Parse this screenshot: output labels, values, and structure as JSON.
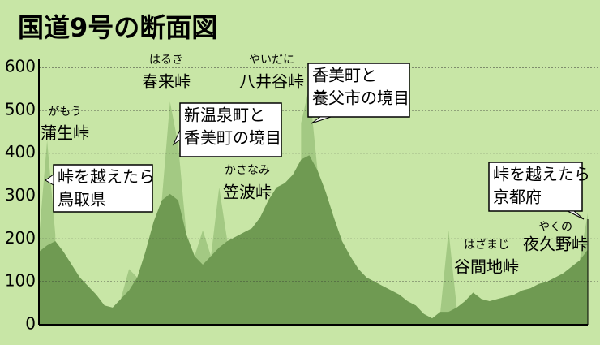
{
  "chart_data": {
    "type": "area",
    "title": "国道9号の断面図",
    "series": [
      {
        "color": "#6f9a52",
        "values": [
          170,
          185,
          195,
          170,
          140,
          110,
          90,
          70,
          45,
          40,
          60,
          80,
          110,
          170,
          240,
          290,
          305,
          290,
          210,
          160,
          140,
          160,
          180,
          195,
          205,
          215,
          225,
          250,
          290,
          320,
          330,
          350,
          385,
          395,
          360,
          310,
          250,
          195,
          160,
          130,
          110,
          100,
          90,
          80,
          70,
          55,
          45,
          25,
          15,
          30,
          30,
          40,
          55,
          75,
          60,
          55,
          60,
          65,
          70,
          80,
          85,
          95,
          100,
          110,
          120,
          135,
          150,
          175
        ]
      },
      {
        "color": "#a3c983",
        "values": [
          200,
          430,
          210,
          null,
          null,
          null,
          null,
          null,
          null,
          null,
          60,
          130,
          110,
          null,
          null,
          290,
          520,
          420,
          210,
          160,
          220,
          160,
          320,
          195,
          null,
          null,
          null,
          null,
          null,
          null,
          null,
          null,
          470,
          555,
          360,
          null,
          null,
          null,
          null,
          null,
          null,
          null,
          null,
          null,
          null,
          null,
          null,
          null,
          null,
          30,
          220,
          40,
          null,
          null,
          null,
          null,
          null,
          null,
          null,
          null,
          null,
          null,
          null,
          null,
          null,
          null,
          150,
          260
        ]
      }
    ],
    "ylim": [
      0,
      600
    ],
    "yticks": [
      0,
      100,
      200,
      300,
      400,
      500,
      600
    ],
    "grid": true,
    "passes": [
      {
        "ruby": "がもう",
        "name": "蒲生峠"
      },
      {
        "ruby": "はるき",
        "name": "春来峠"
      },
      {
        "ruby": "やいだに",
        "name": "八井谷峠"
      },
      {
        "ruby": "かさなみ",
        "name": "笠波峠"
      },
      {
        "ruby": "はざまじ",
        "name": "谷間地峠"
      },
      {
        "ruby": "やくの",
        "name": "夜久野峠"
      }
    ],
    "callouts": [
      {
        "lines": [
          "峠を越えたら",
          "鳥取県"
        ]
      },
      {
        "lines": [
          "新温泉町と",
          "香美町の境目"
        ]
      },
      {
        "lines": [
          "香美町と",
          "養父市の境目"
        ]
      },
      {
        "lines": [
          "峠を越えたら",
          "京都府"
        ]
      }
    ]
  }
}
